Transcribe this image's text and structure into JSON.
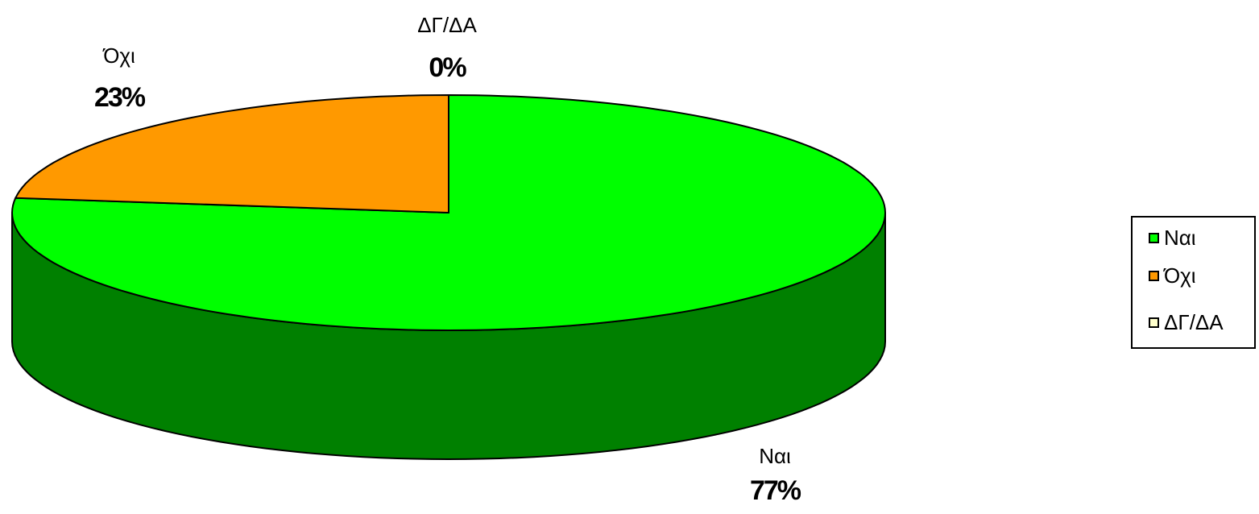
{
  "chart_data": {
    "type": "pie",
    "style": "3d",
    "title": "",
    "categories": [
      "Ναι",
      "Όχι",
      "ΔΓ/ΔΑ"
    ],
    "values": [
      77,
      23,
      0
    ],
    "data_labels": [
      "77%",
      "23%",
      "0%"
    ],
    "colors": [
      "#00ff00",
      "#ff9900",
      "#ffffcc"
    ],
    "side_colors": [
      "#008000",
      "#b36b00",
      "#cccc99"
    ],
    "legend": {
      "position": "right",
      "entries": [
        "Ναι",
        "Όχι",
        "ΔΓ/ΔΑ"
      ]
    }
  }
}
